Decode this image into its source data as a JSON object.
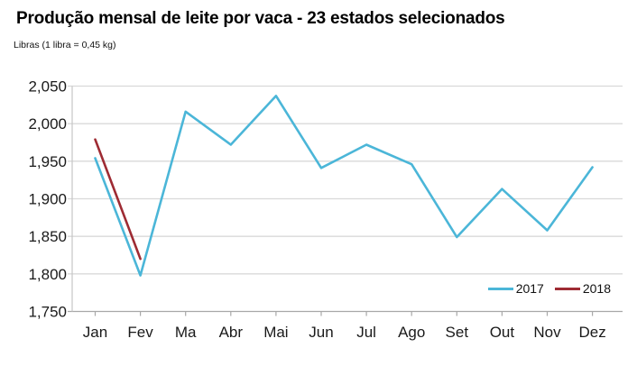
{
  "header": {
    "title": "Produção mensal de leite por vaca - 23 estados selecionados",
    "subtitle": "Libras (1 libra = 0,45 kg)"
  },
  "chart_data": {
    "type": "line",
    "title": "Produção mensal de leite por vaca - 23 estados selecionados",
    "subtitle": "Libras (1 libra = 0,45 kg)",
    "unit": "libras",
    "categories": [
      "Jan",
      "Fev",
      "Ma",
      "Abr",
      "Mai",
      "Jun",
      "Jul",
      "Ago",
      "Set",
      "Out",
      "Nov",
      "Dez"
    ],
    "series": [
      {
        "name": "2017",
        "color": "#4bb6d8",
        "values": [
          1954,
          1798,
          2016,
          1972,
          2037,
          1941,
          1972,
          1946,
          1849,
          1913,
          1858,
          1942
        ]
      },
      {
        "name": "2018",
        "color": "#9e2b33",
        "values": [
          1979,
          1820
        ]
      }
    ],
    "ylim": [
      1750,
      2050
    ],
    "ytick_values": [
      1750,
      1800,
      1850,
      1900,
      1950,
      2000,
      2050
    ],
    "ytick_labels": [
      "1,750",
      "1,800",
      "1,850",
      "1,900",
      "1,950",
      "2,000",
      "2,050"
    ],
    "grid": true,
    "legend_position": "bottom-right",
    "colors": {
      "gridline": "#d9d9d9",
      "axis": "#a8a8a8",
      "left_axis": "#c6c6c6",
      "label": "#1a1a1a"
    }
  }
}
